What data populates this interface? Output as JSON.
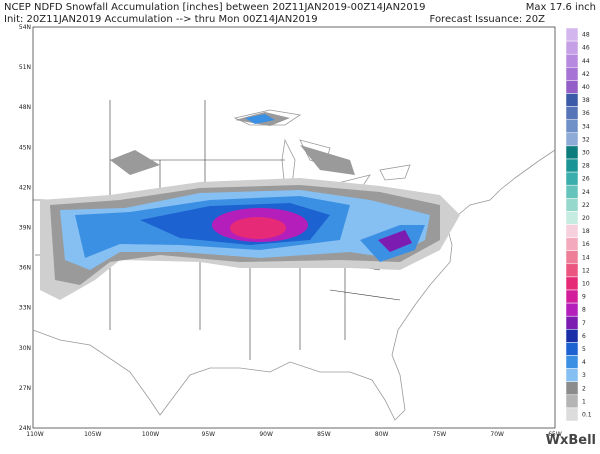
{
  "header": {
    "line1": "NCEP NDFD Snowfall Accumulation [inches] between 20Z11JAN2019-00Z14JAN2019",
    "max": "Max 17.6 inch",
    "line2": "Init: 20Z11JAN2019 Accumulation --> thru Mon 00Z14JAN2019",
    "issuance": "Forecast Issuance: 20Z"
  },
  "map": {
    "lat_labels": [
      "54N",
      "51N",
      "48N",
      "45N",
      "42N",
      "39N",
      "36N",
      "33N",
      "30N",
      "27N",
      "24N"
    ],
    "lon_labels": [
      "110W",
      "105W",
      "100W",
      "95W",
      "90W",
      "85W",
      "80W",
      "75W",
      "70W",
      "65W"
    ]
  },
  "legend": {
    "items": [
      {
        "value": 48,
        "color": "#d4b6ee"
      },
      {
        "value": 46,
        "color": "#c6a0e6"
      },
      {
        "value": 44,
        "color": "#b68ade"
      },
      {
        "value": 42,
        "color": "#a574d4"
      },
      {
        "value": 40,
        "color": "#935ec8"
      },
      {
        "value": 38,
        "color": "#3b5aa8"
      },
      {
        "value": 36,
        "color": "#5575b8"
      },
      {
        "value": 34,
        "color": "#7090c8"
      },
      {
        "value": 32,
        "color": "#8eaad6"
      },
      {
        "value": 30,
        "color": "#0d7c7c"
      },
      {
        "value": 28,
        "color": "#1a9494"
      },
      {
        "value": 26,
        "color": "#3aaeac"
      },
      {
        "value": 24,
        "color": "#64c4bc"
      },
      {
        "value": 22,
        "color": "#96d8cc"
      },
      {
        "value": 20,
        "color": "#c6ebe0"
      },
      {
        "value": 18,
        "color": "#f6d0dc"
      },
      {
        "value": 16,
        "color": "#f2aabc"
      },
      {
        "value": 14,
        "color": "#ee7e98"
      },
      {
        "value": 12,
        "color": "#ea5680"
      },
      {
        "value": 10,
        "color": "#e62a78"
      },
      {
        "value": 9,
        "color": "#d21e9a"
      },
      {
        "value": 8,
        "color": "#b41eba"
      },
      {
        "value": 7,
        "color": "#7c1cb0"
      },
      {
        "value": 6,
        "color": "#1a2ea8"
      },
      {
        "value": 5,
        "color": "#1c62d0"
      },
      {
        "value": 4,
        "color": "#3c90e4"
      },
      {
        "value": 3,
        "color": "#86c0f2"
      },
      {
        "value": 2,
        "color": "#8c8c8c"
      },
      {
        "value": 1,
        "color": "#b4b4b4"
      },
      {
        "value": 0.1,
        "color": "#dcdcdc"
      }
    ]
  },
  "logo": "WxBell"
}
